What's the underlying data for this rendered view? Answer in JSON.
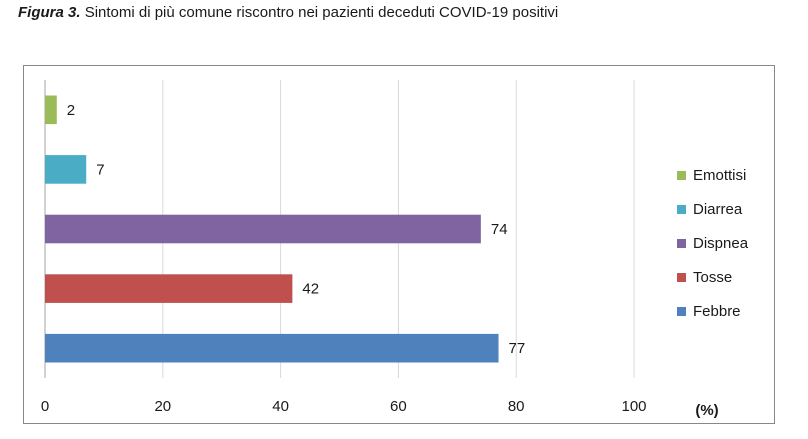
{
  "caption": {
    "figure_label": "Figura 3.",
    "text": "Sintomi di più comune riscontro nei pazienti deceduti COVID-19 positivi"
  },
  "chart_data": {
    "type": "bar",
    "orientation": "horizontal",
    "title": "",
    "xlabel": "(%)",
    "ylabel": "",
    "xlim": [
      0,
      100
    ],
    "xticks": [
      0,
      20,
      40,
      60,
      80,
      100
    ],
    "grid": true,
    "legend_position": "right",
    "series": [
      {
        "name": "Febbre",
        "value": 77,
        "color": "#4f81bd"
      },
      {
        "name": "Tosse",
        "value": 42,
        "color": "#c0504d"
      },
      {
        "name": "Dispnea",
        "value": 74,
        "color": "#8064a2"
      },
      {
        "name": "Diarrea",
        "value": 7,
        "color": "#4bacc6"
      },
      {
        "name": "Emottisi",
        "value": 2,
        "color": "#9bbb59"
      }
    ]
  }
}
